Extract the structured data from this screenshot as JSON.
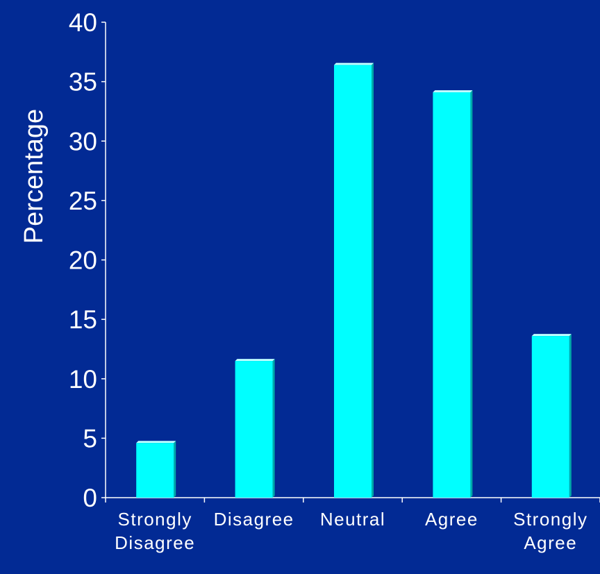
{
  "chart_data": {
    "type": "bar",
    "title": "",
    "xlabel": "",
    "ylabel": "Percentage",
    "categories": [
      [
        "Strongly",
        "Disagree"
      ],
      [
        "Disagree"
      ],
      [
        "Neutral"
      ],
      [
        "Agree"
      ],
      [
        "Strongly",
        "Agree"
      ]
    ],
    "values": [
      4.6,
      11.5,
      36.4,
      34.1,
      13.6
    ],
    "ylim": [
      0,
      40
    ],
    "yticks": [
      0,
      5,
      10,
      15,
      20,
      25,
      30,
      35,
      40
    ],
    "grid": false,
    "legend": "none",
    "colors": {
      "background": "#022a94",
      "bar_fill": "#00ffff",
      "bar_shade": "#00aaaa",
      "axis": "#ffffff",
      "text": "#ffffff"
    }
  }
}
